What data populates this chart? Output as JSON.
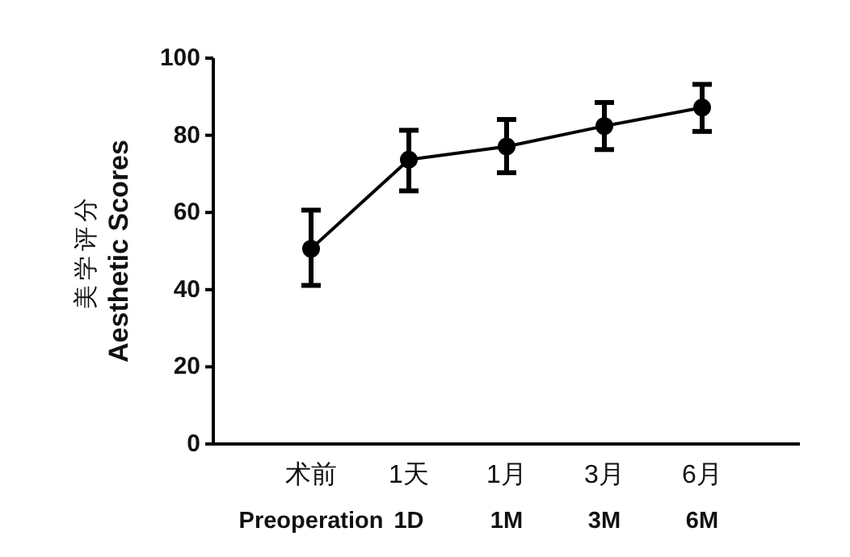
{
  "chart_data": {
    "type": "line",
    "ylabel": "美学评分\nAesthetic Scores",
    "categories": [
      "术前\nPreoperation",
      "1天\n1D",
      "1月\n1M",
      "3月\n3M",
      "6月\n6M"
    ],
    "series": [
      {
        "color": "#000000",
        "values": [
          50.6,
          73.7,
          77.1,
          82.4,
          87.2
        ],
        "errors": [
          [
            41.1,
            60.6
          ],
          [
            65.6,
            81.3
          ],
          [
            70.3,
            84.1
          ],
          [
            76.3,
            88.5
          ],
          [
            81.0,
            93.2
          ]
        ]
      }
    ],
    "ylim": [
      0,
      100
    ],
    "yticks": [
      0,
      20,
      40,
      60,
      80,
      100
    ],
    "marker": "circle",
    "line_style": "solid",
    "grid": false
  }
}
